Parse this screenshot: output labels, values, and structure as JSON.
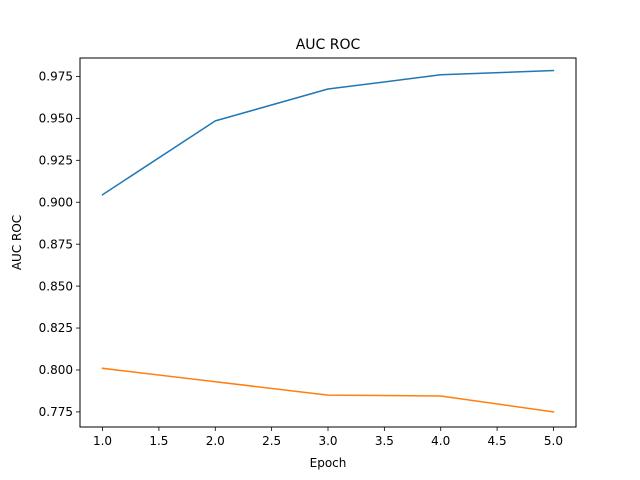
{
  "chart_data": {
    "type": "line",
    "title": "AUC ROC",
    "xlabel": "Epoch",
    "ylabel": "AUC ROC",
    "xlim": [
      0.8,
      5.2
    ],
    "ylim": [
      0.766,
      0.986
    ],
    "grid": false,
    "x": [
      1.0,
      2.0,
      3.0,
      4.0,
      5.0
    ],
    "xticks": [
      1.0,
      1.5,
      2.0,
      2.5,
      3.0,
      3.5,
      4.0,
      4.5,
      5.0
    ],
    "xtick_labels": [
      "1.0",
      "1.5",
      "2.0",
      "2.5",
      "3.0",
      "3.5",
      "4.0",
      "4.5",
      "5.0"
    ],
    "yticks": [
      0.775,
      0.8,
      0.825,
      0.85,
      0.875,
      0.9,
      0.925,
      0.95,
      0.975
    ],
    "ytick_labels": [
      "0.775",
      "0.800",
      "0.825",
      "0.850",
      "0.875",
      "0.900",
      "0.925",
      "0.950",
      "0.975"
    ],
    "series": [
      {
        "color": "#1f77b4",
        "values": [
          0.9045,
          0.9485,
          0.9675,
          0.976,
          0.9785
        ]
      },
      {
        "color": "#ff7f0e",
        "values": [
          0.801,
          0.793,
          0.785,
          0.7845,
          0.775
        ]
      }
    ]
  }
}
